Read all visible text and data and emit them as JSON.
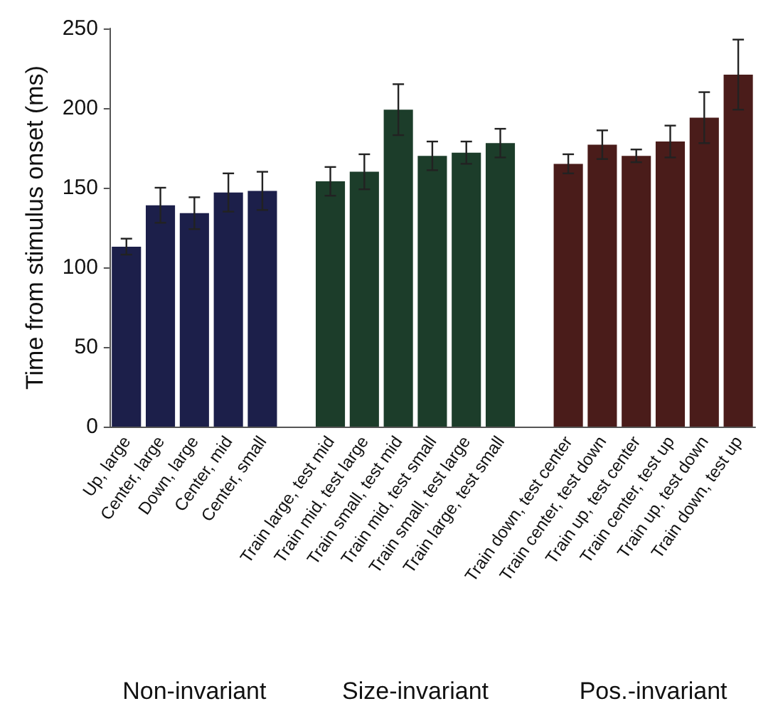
{
  "chart_data": {
    "type": "bar",
    "ylabel": "Time from stimulus onset (ms)",
    "categories": [
      "Up, large",
      "Center, large",
      "Down, large",
      "Center, mid",
      "Center, small",
      null,
      "Train large, test mid",
      "Train mid, test large",
      "Train small, test mid",
      "Train mid, test small",
      "Train small, test large",
      "Train large, test small",
      null,
      "Train down, test center",
      "Train center, test down",
      "Train up, test center",
      "Train center, test up",
      "Train up, test down",
      "Train down, test up"
    ],
    "series": [
      {
        "color": "#1c1f4a",
        "values": [
          113,
          139,
          134,
          147,
          148,
          null,
          null,
          null,
          null,
          null,
          null,
          null,
          null,
          null,
          null,
          null,
          null,
          null,
          null
        ],
        "errors": [
          5,
          11,
          10,
          12,
          12,
          null,
          null,
          null,
          null,
          null,
          null,
          null,
          null,
          null,
          null,
          null,
          null,
          null,
          null
        ]
      },
      {
        "color": "#1c3d2a",
        "values": [
          null,
          null,
          null,
          null,
          null,
          null,
          154,
          160,
          199,
          170,
          172,
          178,
          null,
          null,
          null,
          null,
          null,
          null,
          null
        ],
        "errors": [
          null,
          null,
          null,
          null,
          null,
          null,
          9,
          11,
          16,
          9,
          7,
          9,
          null,
          null,
          null,
          null,
          null,
          null,
          null
        ]
      },
      {
        "color": "#4a1c1a",
        "values": [
          null,
          null,
          null,
          null,
          null,
          null,
          null,
          null,
          null,
          null,
          null,
          null,
          null,
          165,
          177,
          170,
          179,
          194,
          221
        ],
        "errors": [
          null,
          null,
          null,
          null,
          null,
          null,
          null,
          null,
          null,
          null,
          null,
          null,
          null,
          6,
          9,
          4,
          10,
          16,
          22
        ]
      }
    ],
    "ylim": [
      0,
      250
    ],
    "yticks": [
      0,
      50,
      100,
      150,
      200,
      250
    ],
    "annotations": [
      "Non-invariant",
      "Size-invariant",
      "Pos.-invariant"
    ]
  }
}
